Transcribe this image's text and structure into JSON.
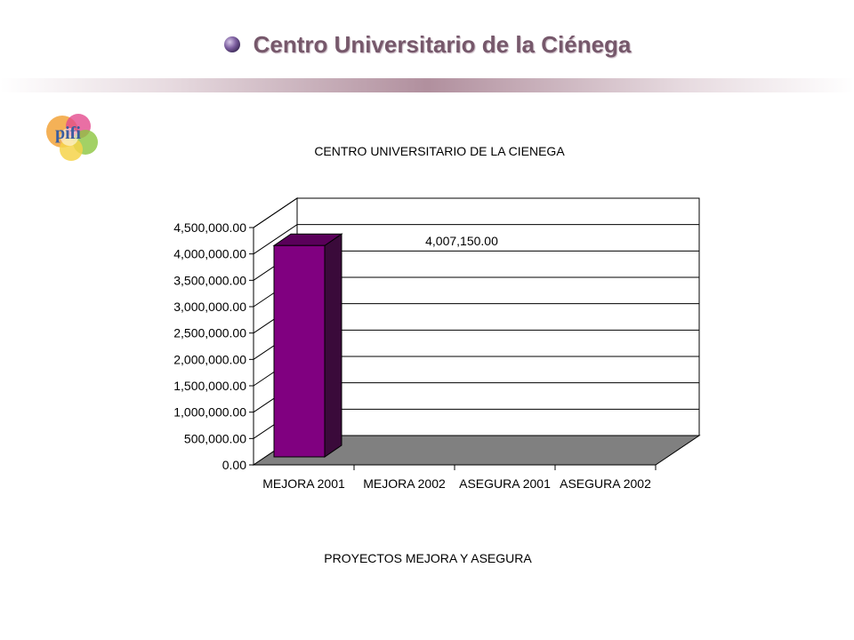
{
  "slide": {
    "title": "Centro Universitario de la Ciénega",
    "logo_text": "pifi"
  },
  "colors": {
    "title_text": "#76586b",
    "bar_front": "#800080",
    "bar_side": "#3a0a3a",
    "bar_top": "#5a005a",
    "floor": "#808080"
  },
  "chart_data": {
    "type": "bar",
    "title": "CENTRO UNIVERSITARIO DE LA CIENEGA",
    "xlabel": "PROYECTOS MEJORA Y ASEGURA",
    "ylabel": "",
    "categories": [
      "MEJORA 2001",
      "MEJORA 2002",
      "ASEGURA 2001",
      "ASEGURA 2002"
    ],
    "values": [
      4007150,
      0,
      0,
      0
    ],
    "data_labels": [
      "4,007,150.00",
      "",
      "",
      ""
    ],
    "ylim": [
      0,
      4500000
    ],
    "yticks": [
      "0.00",
      "500,000.00",
      "1,000,000.00",
      "1,500,000.00",
      "2,000,000.00",
      "2,500,000.00",
      "3,000,000.00",
      "3,500,000.00",
      "4,000,000.00",
      "4,500,000.00"
    ],
    "grid": true,
    "legend": "none",
    "style": "3d"
  }
}
